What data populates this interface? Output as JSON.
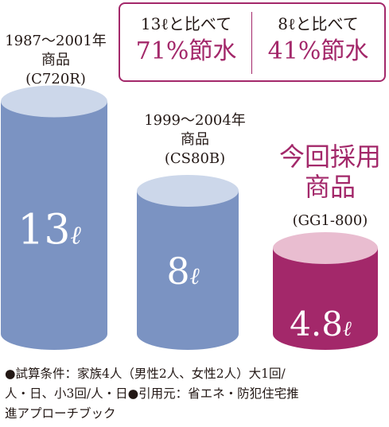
{
  "chart_data": {
    "type": "bar",
    "title": "",
    "xlabel": "",
    "ylabel": "",
    "unit": "ℓ",
    "categories": [
      {
        "years": "1987〜2001年",
        "kind": "商品",
        "model": "(C720R)",
        "highlight": ""
      },
      {
        "years": "1999〜2004年",
        "kind": "商品",
        "model": "(CS80B)",
        "highlight": ""
      },
      {
        "years": "",
        "kind": "",
        "model": "(GG1-800)",
        "highlight": "今回採用|商品"
      }
    ],
    "values": [
      13,
      8,
      4.8
    ],
    "value_labels": [
      "13",
      "8",
      "4.8"
    ],
    "colors": {
      "body": [
        "#7b93c2",
        "#7b93c2",
        "#a3286a"
      ],
      "top": [
        "#ccd7ea",
        "#ccd7ea",
        "#e9bdd0"
      ],
      "accent": "#a3286a"
    }
  },
  "savings": {
    "left": {
      "caption": "13ℓと比べて",
      "value": "71%節水"
    },
    "right": {
      "caption": "8ℓと比べて",
      "value": "41%節水"
    }
  },
  "highlight_label": {
    "line1": "今回採用",
    "line2": "商品"
  },
  "footnote": {
    "line1": "●試算条件：家族4人（男性2人、女性2人）大1回/",
    "line2": "人・日、小3回/人・日●引用元：省エネ・防犯住宅推",
    "line3": "進アプローチブック"
  }
}
